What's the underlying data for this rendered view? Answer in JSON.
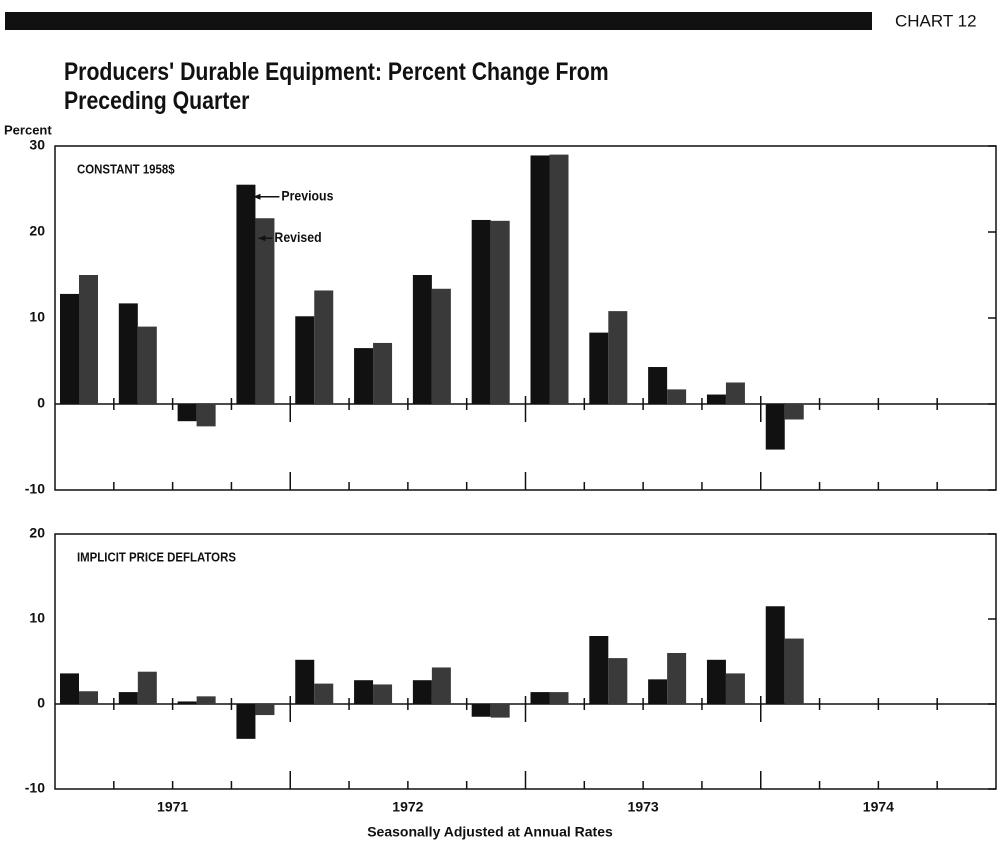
{
  "header": "CHART 12",
  "title": "Producers' Durable Equipment:  Percent Change From Preceding Quarter",
  "ylabel": "Percent",
  "xlabel": "Seasonally Adjusted at Annual Rates",
  "years": [
    "1971",
    "1972",
    "1973",
    "1974"
  ],
  "chart_data": [
    {
      "type": "bar",
      "label": "CONSTANT 1958$",
      "categories": [
        null,
        null,
        null,
        null,
        null,
        null,
        null,
        null,
        null,
        null,
        null,
        null,
        null,
        null,
        null,
        null
      ],
      "series": [
        {
          "name": "Previous",
          "color": "#111111",
          "values": [
            12.8,
            11.7,
            -2.0,
            25.5,
            10.2,
            6.5,
            15.0,
            21.4,
            28.9,
            8.3,
            4.3,
            1.1,
            -5.3,
            null,
            null,
            null
          ]
        },
        {
          "name": "Revised",
          "color": "#3a3a3a",
          "values": [
            15.0,
            9.0,
            -2.6,
            21.6,
            13.2,
            7.1,
            13.4,
            21.3,
            29.0,
            10.8,
            1.7,
            2.5,
            -1.8,
            null,
            null,
            null
          ]
        }
      ],
      "ylim": [
        -10,
        30
      ],
      "yticks": [
        -10,
        0,
        10,
        20,
        30
      ]
    },
    {
      "type": "bar",
      "label": "IMPLICIT PRICE DEFLATORS",
      "categories": [
        null,
        null,
        null,
        null,
        null,
        null,
        null,
        null,
        null,
        null,
        null,
        null,
        null,
        null,
        null,
        null
      ],
      "series": [
        {
          "color": "#111111",
          "values": [
            3.6,
            1.4,
            0.3,
            -4.1,
            5.2,
            2.8,
            2.8,
            -1.5,
            1.4,
            8.0,
            2.9,
            5.2,
            11.5,
            null,
            null,
            null
          ]
        },
        {
          "color": "#3a3a3a",
          "values": [
            1.5,
            3.8,
            0.9,
            -1.3,
            2.4,
            2.3,
            4.3,
            -1.6,
            1.4,
            5.4,
            6.0,
            3.6,
            7.7,
            null,
            null,
            null
          ]
        }
      ],
      "ylim": [
        -10,
        20
      ],
      "yticks": [
        -10,
        0,
        10,
        20
      ]
    }
  ]
}
